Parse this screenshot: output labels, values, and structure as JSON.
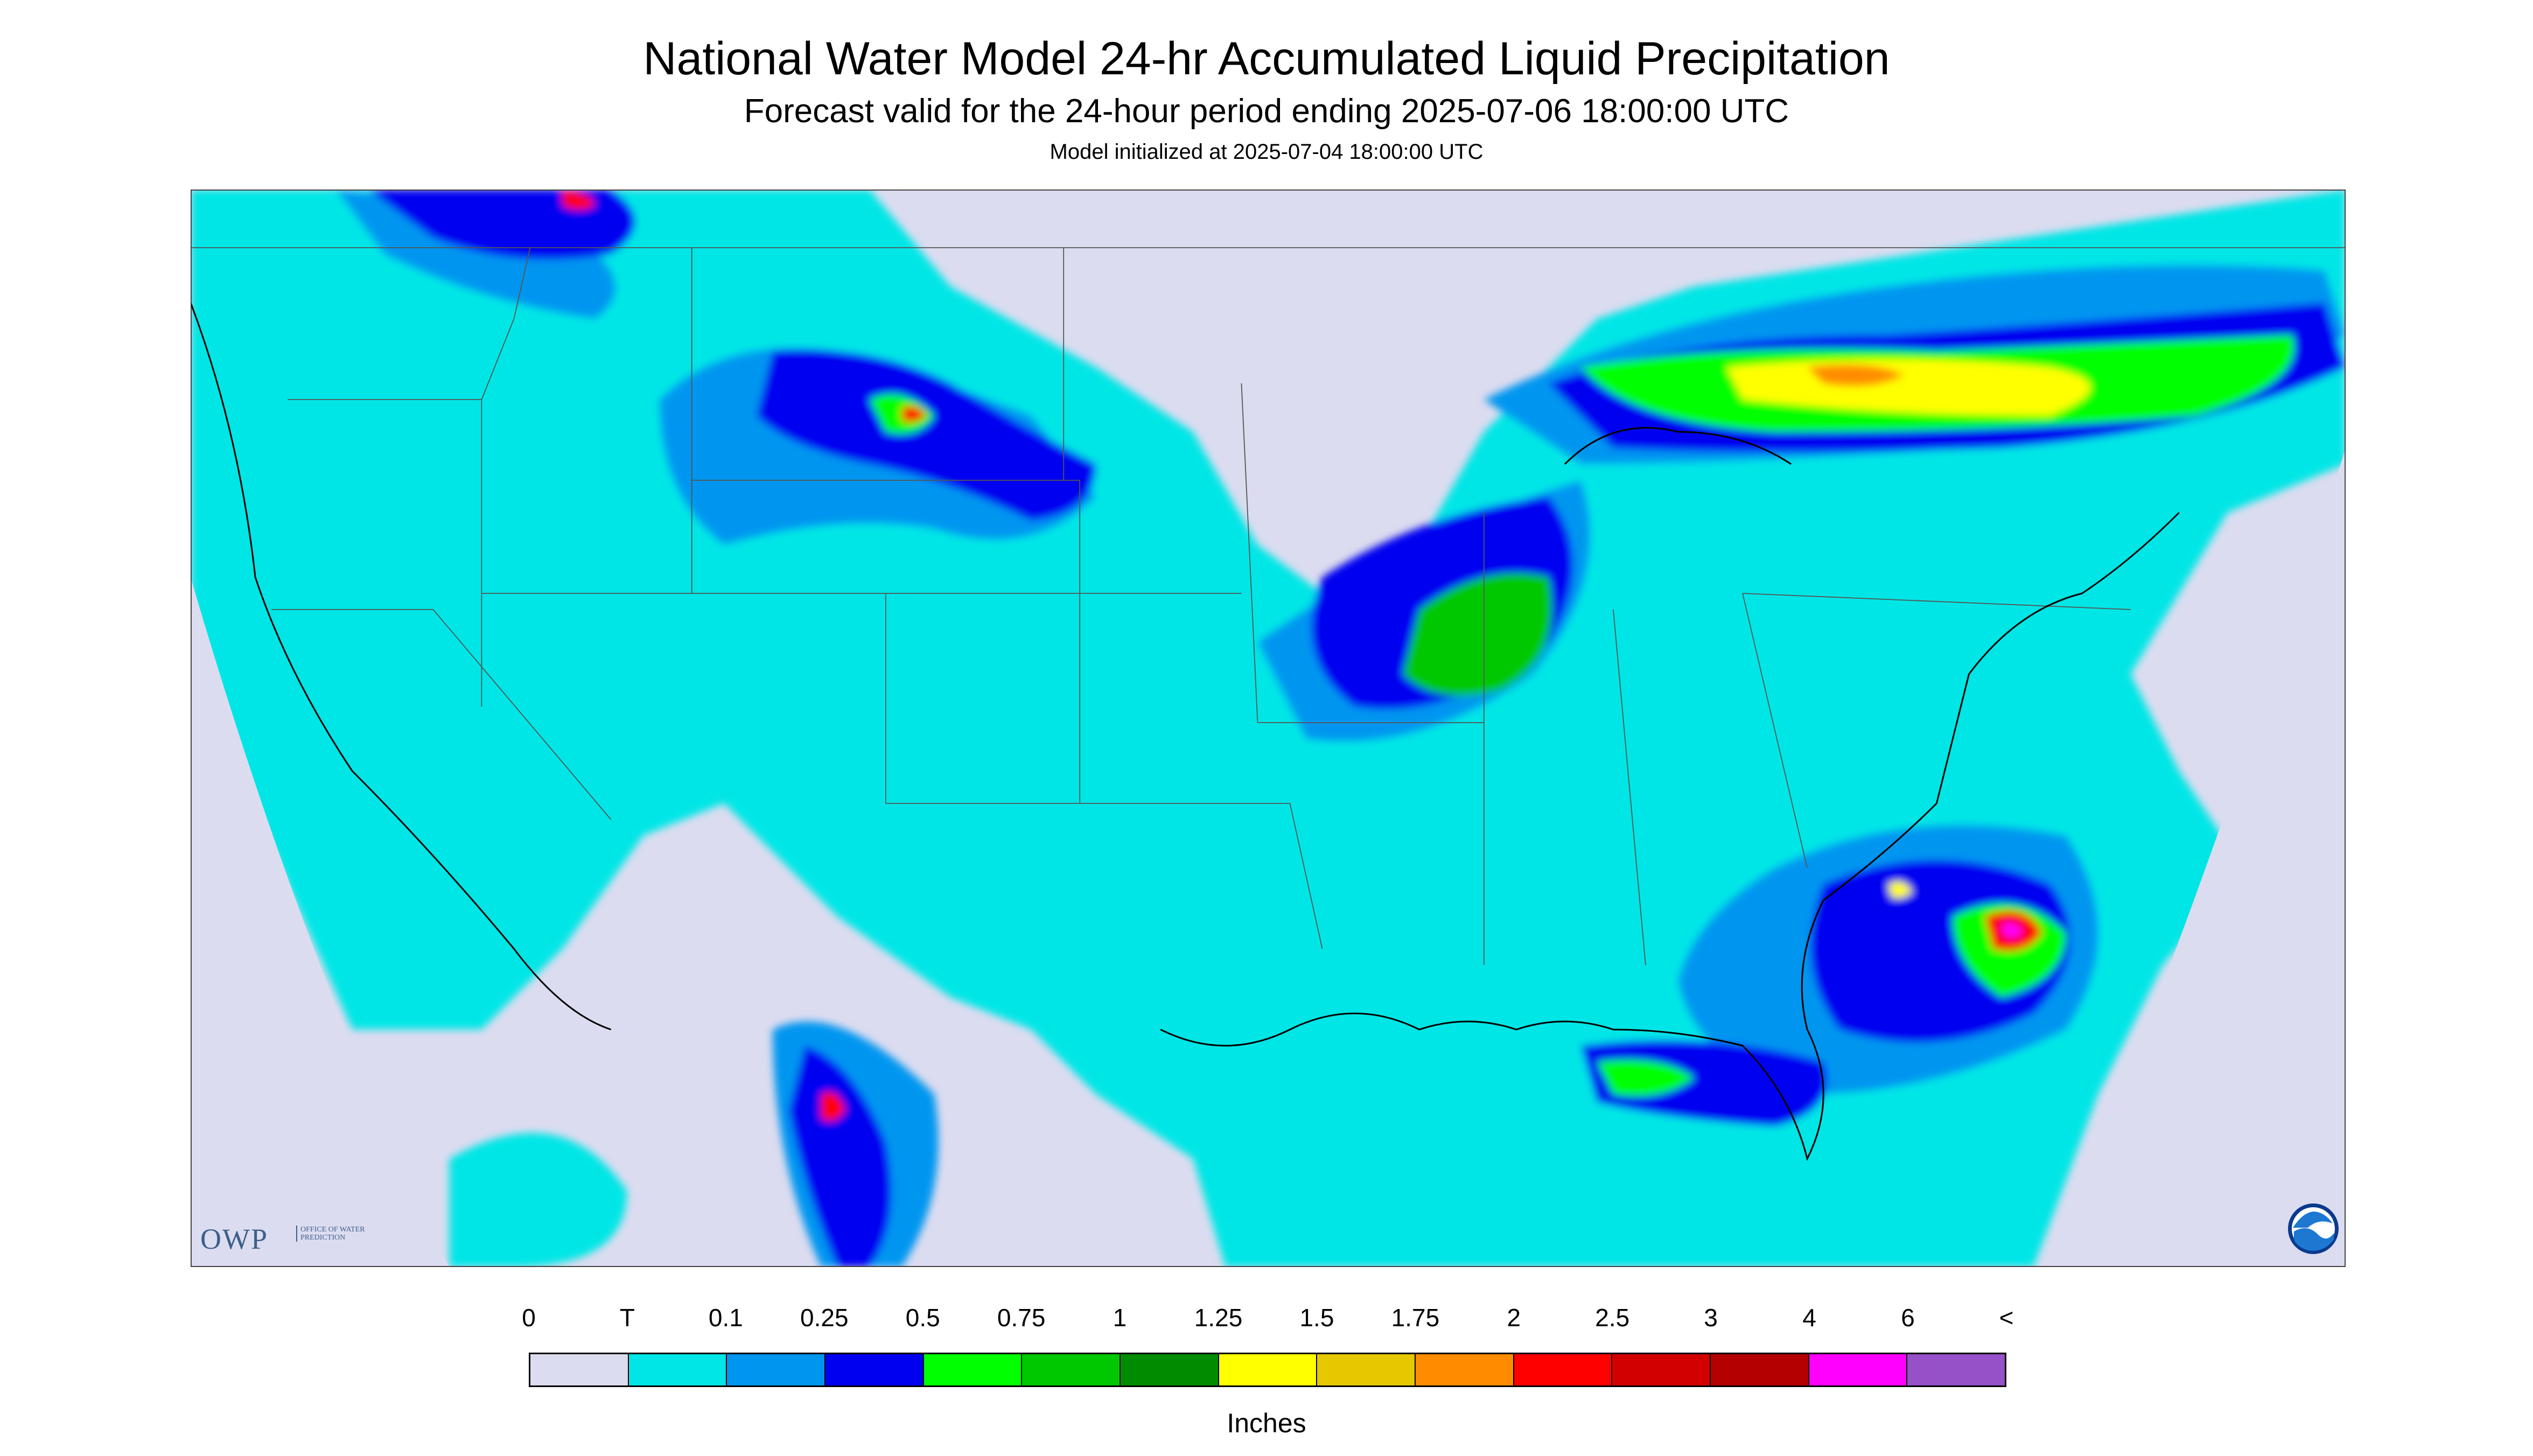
{
  "header": {
    "title": "National Water Model 24-hr Accumulated Liquid Precipitation",
    "subtitle": "Forecast valid for the 24-hour period ending 2025-07-06 18:00:00 UTC",
    "init": "Model initialized at 2025-07-04 18:00:00 UTC"
  },
  "legend": {
    "labels": [
      "0",
      "T",
      "0.1",
      "0.25",
      "0.5",
      "0.75",
      "1",
      "1.25",
      "1.5",
      "1.75",
      "2",
      "2.5",
      "3",
      "4",
      "6",
      "<"
    ],
    "colors": [
      "#dcdcf0",
      "#00e6e6",
      "#0096f0",
      "#0000f0",
      "#00ff00",
      "#00c800",
      "#008c00",
      "#ffff00",
      "#e6c800",
      "#ff8c00",
      "#ff0000",
      "#d20000",
      "#b40000",
      "#ff00ff",
      "#9650c8"
    ],
    "units": "Inches"
  },
  "logos": {
    "owp_text": "OWP",
    "owp_sub": "OFFICE OF WATER PREDICTION",
    "noaa_text": "NOAA"
  },
  "map": {
    "region": "CONUS",
    "colors": {
      "no_data": "#dcdcf0",
      "trace": "#00e6e6",
      "light": "#0096f0",
      "moderate": "#0000f0",
      "green": "#00ff00",
      "green_dark": "#00c800",
      "yellow": "#ffff00",
      "orange": "#ff8c00",
      "red": "#ff0000",
      "magenta": "#ff00ff"
    }
  }
}
